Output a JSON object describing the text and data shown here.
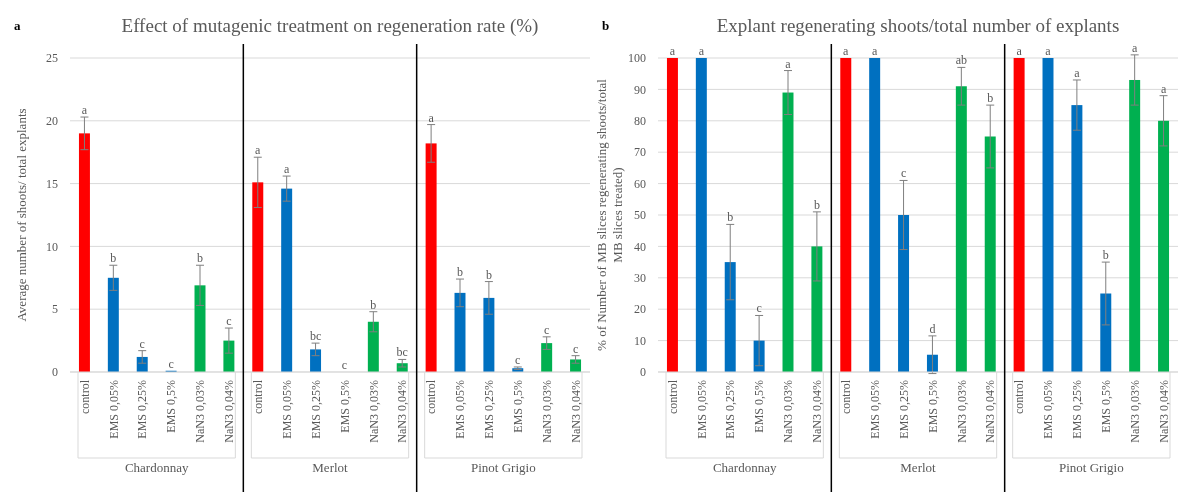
{
  "chart_data": [
    {
      "type": "bar",
      "title": "Effect of mutagenic treatment on regeneration rate (%)",
      "ylabel": "Average number of shoots/ total explants",
      "categories": [
        "control",
        "EMS 0,05%",
        "EMS 0,25%",
        "EMS 0,5%",
        "NaN3 0,03%",
        "NaN3 0,04%",
        "control",
        "EMS 0,05%",
        "EMS 0,25%",
        "EMS 0,5%",
        "NaN3 0,03%",
        "NaN3 0,04%",
        "control",
        "EMS 0,05%",
        "EMS 0,25%",
        "EMS 0,5%",
        "NaN3 0,03%",
        "NaN3 0,04%"
      ],
      "values": [
        19,
        7.5,
        1.2,
        0.1,
        6.9,
        2.5,
        15.1,
        14.6,
        1.8,
        0,
        4,
        0.7,
        18.2,
        6.3,
        5.9,
        0.3,
        2.3,
        1
      ],
      "errors": [
        1.3,
        1,
        0.5,
        null,
        1.6,
        1,
        2,
        1,
        0.5,
        null,
        0.8,
        0.3,
        1.5,
        1.1,
        1.3,
        0.1,
        0.5,
        0.3
      ],
      "colors": [
        "#ff0000",
        "#0070c0",
        "#0070c0",
        "#0070c0",
        "#00b050",
        "#00b050",
        "#ff0000",
        "#0070c0",
        "#0070c0",
        "#0070c0",
        "#00b050",
        "#00b050",
        "#ff0000",
        "#0070c0",
        "#0070c0",
        "#0070c0",
        "#00b050",
        "#00b050"
      ],
      "value_labels": [
        "a",
        "b",
        "c",
        "c",
        "b",
        "c",
        "a",
        "a",
        "bc",
        "c",
        "b",
        "bc",
        "a",
        "b",
        "b",
        "c",
        "c",
        "c"
      ],
      "ylim": [
        0,
        25
      ],
      "yticks": [
        0,
        5,
        10,
        15,
        20,
        25
      ],
      "grid": "y",
      "annotations": [
        "a",
        "Chardonnay",
        "Merlot",
        "Pinot Grigio"
      ]
    },
    {
      "type": "bar",
      "title": "Explant regenerating shoots/total number of explants",
      "ylabel": "% of Number of MB slices regenerating shoots/total MB slices treated)",
      "categories": [
        "control",
        "EMS 0,05%",
        "EMS 0,25%",
        "EMS 0,5%",
        "NaN3 0,03%",
        "NaN3 0,04%",
        "control",
        "EMS 0,05%",
        "EMS 0,25%",
        "EMS 0,5%",
        "NaN3 0,03%",
        "NaN3 0,04%",
        "control",
        "EMS 0,05%",
        "EMS 0,25%",
        "EMS 0,5%",
        "NaN3 0,03%",
        "NaN3 0,04%"
      ],
      "values": [
        100,
        100,
        35,
        10,
        89,
        40,
        100,
        100,
        50,
        5.5,
        91,
        75,
        100,
        100,
        85,
        25,
        93,
        80
      ],
      "errors": [
        null,
        null,
        12,
        8,
        7,
        11,
        null,
        null,
        11,
        6,
        6,
        10,
        null,
        null,
        8,
        10,
        8,
        8
      ],
      "colors": [
        "#ff0000",
        "#0070c0",
        "#0070c0",
        "#0070c0",
        "#00b050",
        "#00b050",
        "#ff0000",
        "#0070c0",
        "#0070c0",
        "#0070c0",
        "#00b050",
        "#00b050",
        "#ff0000",
        "#0070c0",
        "#0070c0",
        "#0070c0",
        "#00b050",
        "#00b050"
      ],
      "value_labels": [
        "a",
        "a",
        "b",
        "c",
        "a",
        "b",
        "a",
        "a",
        "c",
        "d",
        "ab",
        "b",
        "a",
        "a",
        "a",
        "b",
        "a",
        "a"
      ],
      "ylim": [
        0,
        100
      ],
      "yticks": [
        0,
        10,
        20,
        30,
        40,
        50,
        60,
        70,
        80,
        90,
        100
      ],
      "grid": "y",
      "annotations": [
        "b",
        "Chardonnay",
        "Merlot",
        "Pinot Grigio"
      ]
    }
  ]
}
